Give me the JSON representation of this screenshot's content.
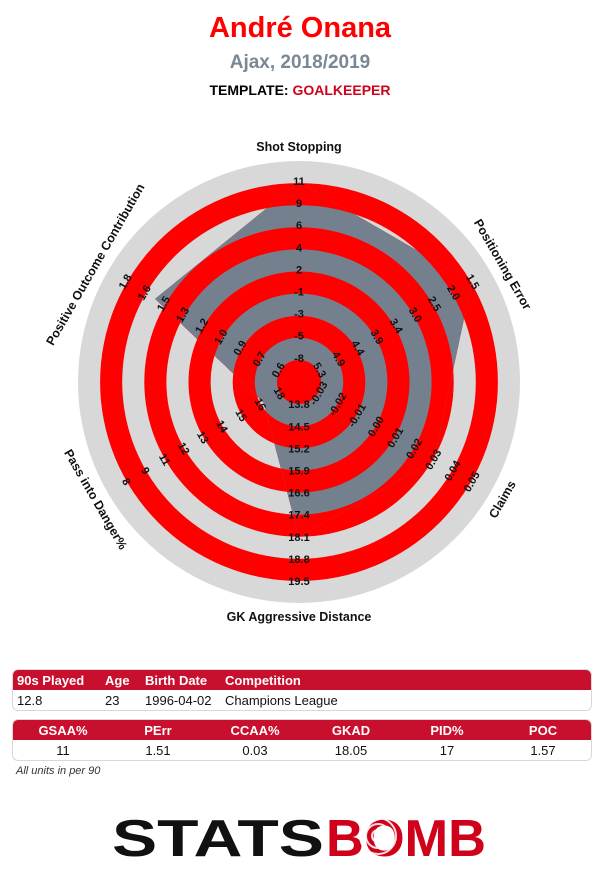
{
  "header": {
    "player_name": "André Onana",
    "team_season": "Ajax, 2018/2019",
    "template_label": "TEMPLATE:",
    "template_value": "GOALKEEPER"
  },
  "chart_data": {
    "type": "radar",
    "colors": {
      "ring_red": "#ff0000",
      "ring_grey": "#d8d8d8",
      "player_fill": "#75808f"
    },
    "axes": [
      {
        "name": "Shot Stopping",
        "ticks": [
          "-8",
          "-5",
          "-3",
          "-1",
          "2",
          "4",
          "6",
          "9",
          "11"
        ],
        "value": 11,
        "min": -8,
        "max": 11
      },
      {
        "name": "Positioning Error",
        "ticks": [
          "5.3",
          "4.9",
          "4.4",
          "3.9",
          "3.4",
          "3.0",
          "2.5",
          "2.0",
          "1.5"
        ],
        "value": 1.51,
        "min": 5.3,
        "max": 1.5,
        "inverted": true
      },
      {
        "name": "Claims",
        "ticks": [
          "-0.03",
          "-0.02",
          "-0.01",
          "0.00",
          "0.01",
          "0.02",
          "0.03",
          "0.04",
          "0.05"
        ],
        "value": 0.03,
        "min": -0.03,
        "max": 0.05
      },
      {
        "name": "GK Aggressive Distance",
        "ticks": [
          "13.8",
          "14.5",
          "15.2",
          "15.9",
          "16.6",
          "17.4",
          "18.1",
          "18.8",
          "19.5"
        ],
        "value": 18.05,
        "min": 13.8,
        "max": 19.5
      },
      {
        "name": "Pass into Danger%",
        "ticks": [
          "18",
          "16",
          "15",
          "14",
          "13",
          "12",
          "11",
          "9",
          "8"
        ],
        "value": 17,
        "min": 18,
        "max": 8,
        "inverted": true
      },
      {
        "name": "Positive Outcome Contribution",
        "ticks": [
          "0.6",
          "0.7",
          "0.9",
          "1.0",
          "1.2",
          "1.3",
          "1.5",
          "1.6",
          "1.8"
        ],
        "value": 1.57,
        "min": 0.6,
        "max": 1.8
      }
    ]
  },
  "info_table": {
    "headers": [
      "90s Played",
      "Age",
      "Birth Date",
      "Competition"
    ],
    "values": [
      "12.8",
      "23",
      "1996-04-02",
      "Champions League"
    ]
  },
  "metrics_table": {
    "headers": [
      "GSAA%",
      "PErr",
      "CCAA%",
      "GKAD",
      "PID%",
      "POC"
    ],
    "values": [
      "11",
      "1.51",
      "0.03",
      "18.05",
      "17",
      "1.57"
    ]
  },
  "footer": {
    "units_note": "All units in per 90",
    "logo_text_left": "STATS",
    "logo_text_right": "BOMB"
  }
}
